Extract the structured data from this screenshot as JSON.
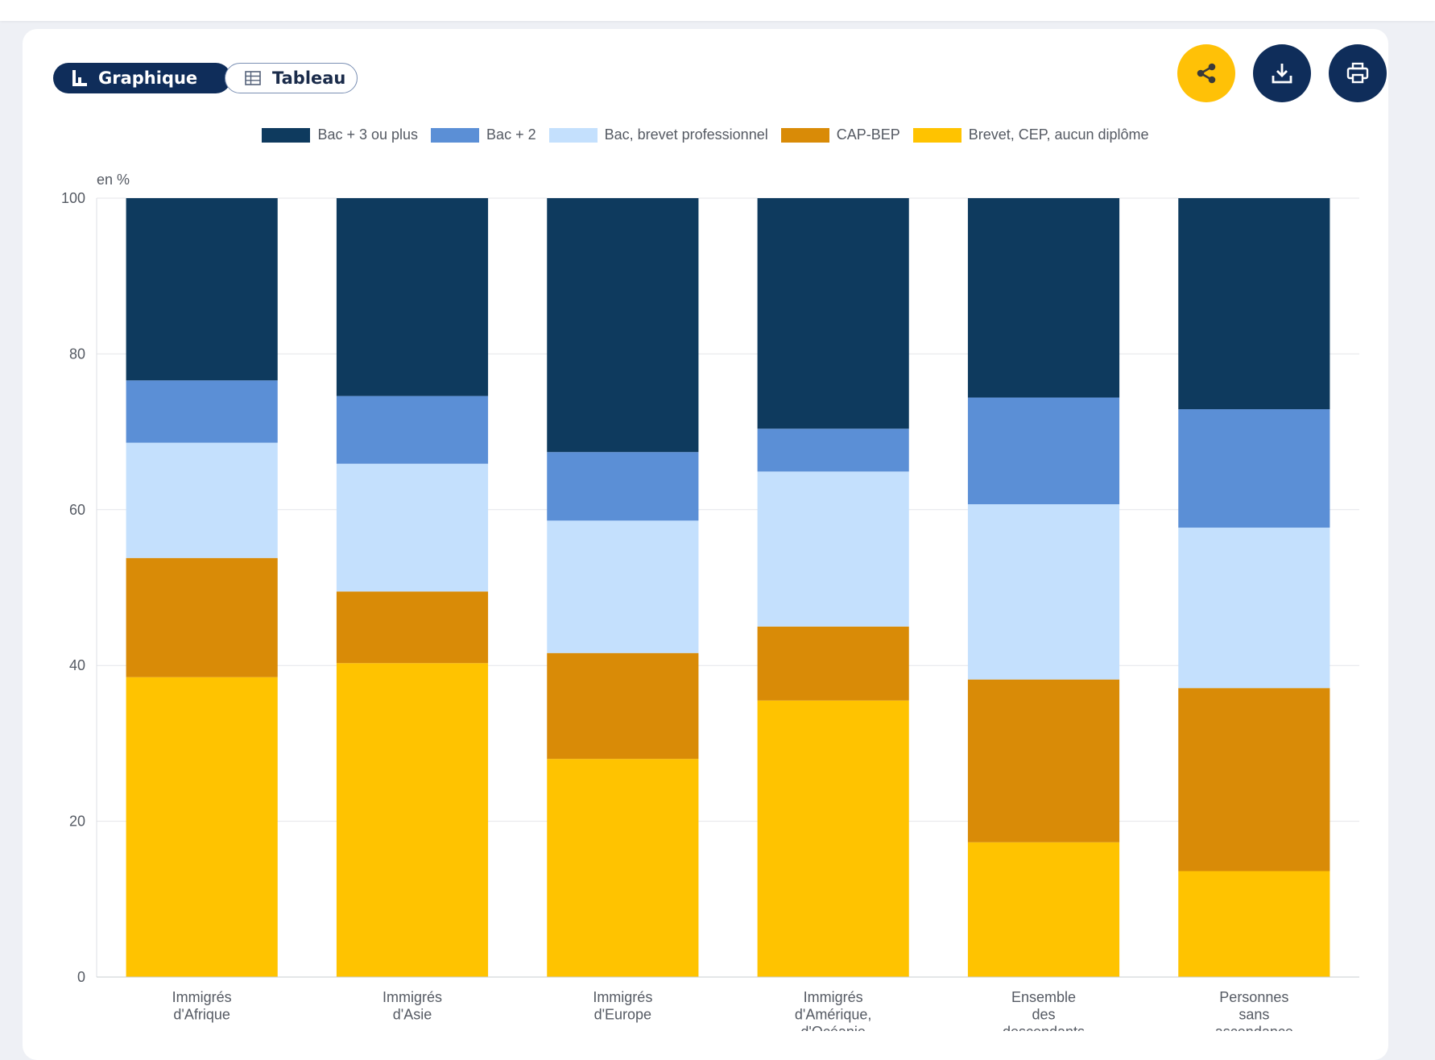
{
  "toolbar": {
    "graph_label": "Graphique",
    "table_label": "Tableau",
    "share_icon": "share-icon",
    "download_icon": "download-icon",
    "print_icon": "print-icon"
  },
  "colors": {
    "brand_navy": "#0f2d5a",
    "share_yellow": "#ffc107",
    "series": [
      "#0e3a5e",
      "#5b8fd6",
      "#c4e0fd",
      "#d98b07",
      "#ffc300"
    ]
  },
  "chart_data": {
    "type": "bar",
    "stacked": true,
    "unit_label": "en %",
    "ylim": [
      0,
      100
    ],
    "yticks": [
      "0",
      "20",
      "40",
      "60",
      "80",
      "100"
    ],
    "grid": true,
    "legend_position": "top",
    "categories": [
      [
        "Immigrés",
        "d'Afrique"
      ],
      [
        "Immigrés",
        "d'Asie"
      ],
      [
        "Immigrés",
        "d'Europe"
      ],
      [
        "Immigrés",
        "d'Amérique,",
        "d'Océanie"
      ],
      [
        "Ensemble",
        "des",
        "descendants"
      ],
      [
        "Personnes",
        "sans",
        "ascendance"
      ]
    ],
    "series": [
      {
        "name": "Bac + 3 ou plus",
        "color": "#0e3a5e",
        "values": [
          23.4,
          25.4,
          32.6,
          29.6,
          25.6,
          27.1
        ]
      },
      {
        "name": "Bac + 2",
        "color": "#5b8fd6",
        "values": [
          8.0,
          8.7,
          8.8,
          5.5,
          13.7,
          15.2
        ]
      },
      {
        "name": "Bac, brevet professionnel",
        "color": "#c4e0fd",
        "values": [
          14.8,
          16.4,
          17.0,
          19.9,
          22.5,
          20.6
        ]
      },
      {
        "name": "CAP-BEP",
        "color": "#d98b07",
        "values": [
          15.3,
          9.2,
          13.6,
          9.5,
          20.9,
          23.5
        ]
      },
      {
        "name": "Brevet, CEP, aucun diplôme",
        "color": "#ffc300",
        "values": [
          38.5,
          40.3,
          28.0,
          35.5,
          17.3,
          13.6
        ]
      }
    ]
  }
}
